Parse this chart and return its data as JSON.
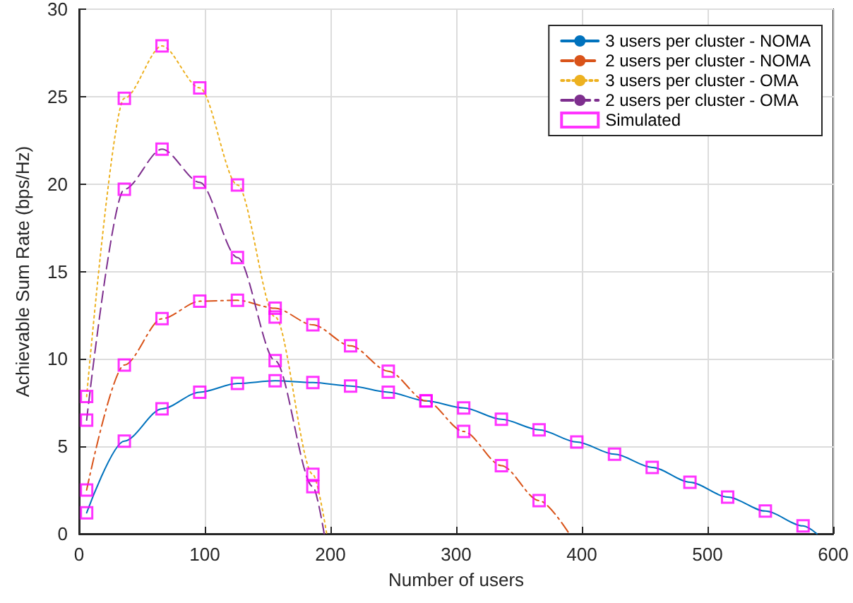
{
  "chart_data": {
    "type": "line",
    "xlabel": "Number of users",
    "ylabel": "Achievable Sum Rate (bps/Hz)",
    "xlim": [
      0,
      600
    ],
    "xticks": [
      0,
      100,
      200,
      300,
      400,
      500,
      600
    ],
    "ylim": [
      0,
      30
    ],
    "yticks": [
      0,
      5,
      10,
      15,
      20,
      25,
      30
    ],
    "grid": true,
    "legend": "top right",
    "series": [
      {
        "name": "3 users per cluster - NOMA",
        "color": "#0072bd",
        "line_style": "solid",
        "marker": "none",
        "x": [
          6,
          36,
          66,
          96,
          126,
          156,
          186,
          216,
          246,
          276,
          306,
          336,
          366,
          396,
          426,
          456,
          486,
          516,
          546,
          576,
          587
        ],
        "values": [
          1.2,
          5.3,
          7.15,
          8.1,
          8.6,
          8.75,
          8.65,
          8.45,
          8.1,
          7.6,
          7.2,
          6.55,
          5.95,
          5.25,
          4.55,
          3.8,
          2.95,
          2.1,
          1.3,
          0.45,
          0
        ]
      },
      {
        "name": "2 users per cluster - NOMA",
        "color": "#d95319",
        "line_style": "dashdot",
        "marker": "none",
        "x": [
          6,
          36,
          66,
          96,
          126,
          156,
          186,
          216,
          246,
          276,
          306,
          336,
          366,
          390
        ],
        "values": [
          2.5,
          9.65,
          12.3,
          13.3,
          13.35,
          12.9,
          11.95,
          10.75,
          9.3,
          7.6,
          5.85,
          3.9,
          1.9,
          0
        ]
      },
      {
        "name": "3 users per cluster - OMA",
        "color": "#edb120",
        "line_style": "dotted",
        "marker": "none",
        "x": [
          6,
          36,
          66,
          96,
          126,
          156,
          186,
          197
        ],
        "values": [
          7.85,
          24.9,
          27.9,
          25.5,
          19.95,
          12.4,
          3.4,
          0
        ]
      },
      {
        "name": "2 users per cluster - OMA",
        "color": "#7e2f8e",
        "line_style": "dashed",
        "marker": "none",
        "x": [
          6,
          36,
          66,
          96,
          126,
          156,
          186,
          195
        ],
        "values": [
          6.5,
          19.7,
          22.0,
          20.1,
          15.8,
          9.9,
          2.7,
          0
        ]
      },
      {
        "name": "Simulated",
        "type": "scatter",
        "color": "#ff00ff",
        "marker": "square",
        "x": [
          6,
          36,
          66,
          96,
          126,
          156,
          186,
          216,
          246,
          276,
          306,
          336,
          366,
          396,
          426,
          456,
          486,
          516,
          546,
          576,
          6,
          36,
          66,
          96,
          126,
          156,
          186,
          216,
          246,
          276,
          306,
          336,
          366,
          6,
          36,
          66,
          96,
          126,
          156,
          186,
          6,
          36,
          66,
          96,
          126,
          156,
          186
        ],
        "values": [
          1.2,
          5.3,
          7.15,
          8.1,
          8.6,
          8.75,
          8.65,
          8.45,
          8.1,
          7.6,
          7.2,
          6.55,
          5.95,
          5.25,
          4.55,
          3.8,
          2.95,
          2.1,
          1.3,
          0.45,
          2.5,
          9.65,
          12.3,
          13.3,
          13.35,
          12.9,
          11.95,
          10.75,
          9.3,
          7.6,
          5.85,
          3.9,
          1.9,
          7.85,
          24.9,
          27.9,
          25.5,
          19.95,
          12.4,
          3.4,
          6.5,
          19.7,
          22.0,
          20.1,
          15.8,
          9.9,
          2.7
        ]
      }
    ]
  }
}
